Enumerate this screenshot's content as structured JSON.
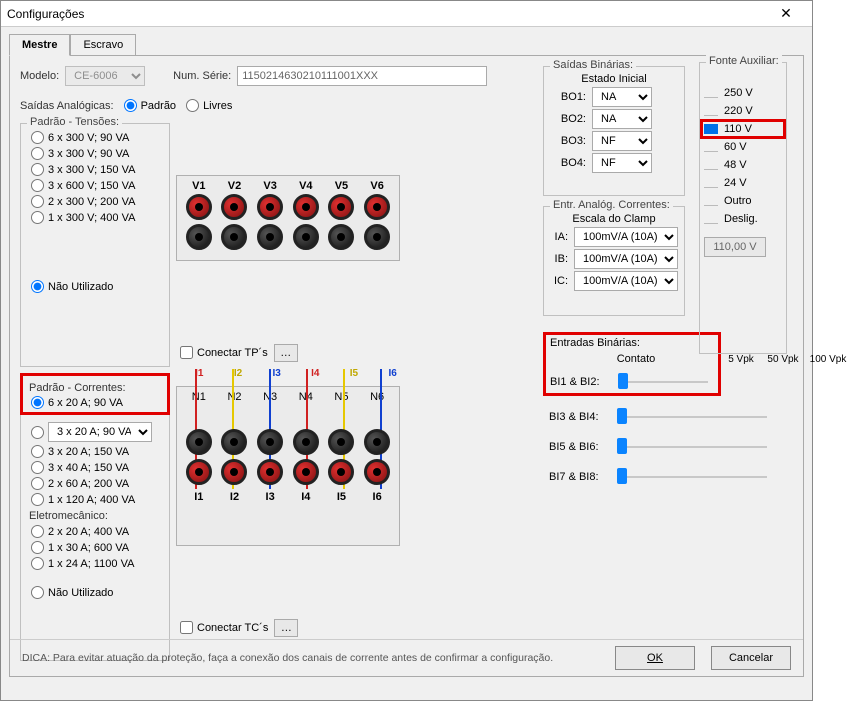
{
  "window": {
    "title": "Configurações",
    "close": "✕"
  },
  "tabs": {
    "master": "Mestre",
    "slave": "Escravo"
  },
  "model": {
    "label": "Modelo:",
    "value": "CE-6006",
    "serial_label": "Num. Série:",
    "serial_value": "1150214630210111001XXX"
  },
  "analog_out": {
    "label": "Saídas Analógicas:",
    "opt_std": "Padrão",
    "opt_free": "Livres"
  },
  "voltages": {
    "title": "Padrão - Tensões:",
    "options": [
      "6 x 300 V; 90 VA",
      "3 x 300 V; 90 VA",
      "3 x 300 V; 150 VA",
      "3 x 600 V; 150 VA",
      "2 x 300 V; 200 VA",
      "1 x 300 V; 400 VA"
    ],
    "not_used": "Não Utilizado",
    "headers": [
      "V1",
      "V2",
      "V3",
      "V4",
      "V5",
      "V6"
    ],
    "connect_tp": "Conectar TP´s"
  },
  "currents": {
    "title": "Padrão - Correntes:",
    "options": [
      "6 x 20 A; 90 VA",
      "3 x 20 A; 90 VA",
      "3 x 20 A; 150 VA",
      "3 x 40 A; 150 VA",
      "2 x 60 A; 200 VA",
      "1 x 120 A; 400 VA"
    ],
    "electro_title": "Eletromecânico:",
    "electro_options": [
      "2 x 20 A; 400 VA",
      "1 x 30 A; 600 VA",
      "1 x 24 A; 1100 VA"
    ],
    "not_used": "Não Utilizado",
    "top_labels": [
      "I1",
      "I2",
      "I3",
      "I4",
      "I5",
      "I6"
    ],
    "n_labels": [
      "N1",
      "N2",
      "N3",
      "N4",
      "N5",
      "N6"
    ],
    "bot_labels": [
      "I1",
      "I2",
      "I3",
      "I4",
      "I5",
      "I6"
    ],
    "wire_colors": [
      "#d02020",
      "#e6c800",
      "#1040d0",
      "#d02020",
      "#e6c800",
      "#1040d0"
    ],
    "connect_tc": "Conectar TC´s"
  },
  "bo": {
    "title": "Saídas Binárias:",
    "state_label": "Estado Inicial",
    "rows": [
      {
        "name": "BO1:",
        "val": "NA"
      },
      {
        "name": "BO2:",
        "val": "NA"
      },
      {
        "name": "BO3:",
        "val": "NF"
      },
      {
        "name": "BO4:",
        "val": "NF"
      }
    ]
  },
  "aux": {
    "title": "Fonte Auxiliar:",
    "items": [
      "250 V",
      "220 V",
      "110 V",
      "60 V",
      "48 V",
      "24 V",
      "Outro",
      "Deslig."
    ],
    "selected_index": 2,
    "field_value": "110,00 V"
  },
  "clamp": {
    "title": "Entr. Analóg. Correntes:",
    "scale_label": "Escala do Clamp",
    "rows": [
      {
        "name": "IA:",
        "val": "100mV/A (10A)"
      },
      {
        "name": "IB:",
        "val": "100mV/A (10A)"
      },
      {
        "name": "IC:",
        "val": "100mV/A (10A)"
      }
    ]
  },
  "bi": {
    "title": "Entradas Binárias:",
    "cols": [
      "Contato",
      "5 Vpk",
      "50 Vpk",
      "100 Vpk"
    ],
    "rows": [
      "BI1 & BI2:",
      "BI3 & BI4:",
      "BI5 & BI6:",
      "BI7 & BI8:"
    ]
  },
  "hint": "DICA: Para evitar atuação da proteção, faça a conexão dos canais de corrente antes de confirmar a configuração.",
  "buttons": {
    "ok": "OK",
    "cancel": "Cancelar"
  },
  "highlights": {
    "color": "#e00000",
    "currents_title_box": true,
    "aux_110_box": true,
    "bi_title_row1_box": true
  }
}
